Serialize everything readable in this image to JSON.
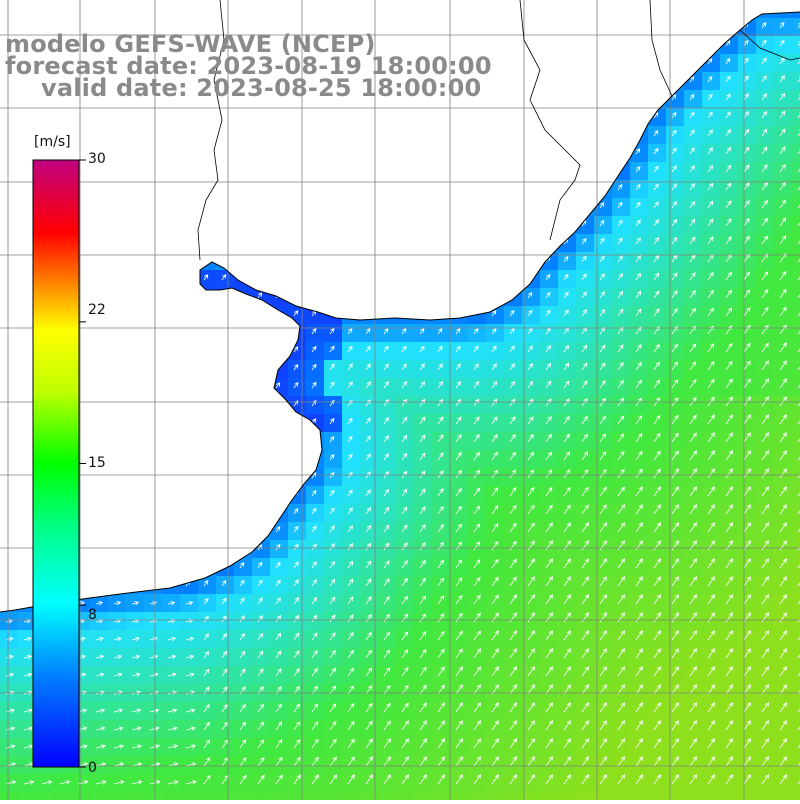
{
  "titles": {
    "line1": "modelo GEFS-WAVE (NCEP)",
    "line2": "forecast date: 2023-08-19 18:00:00",
    "line3": "valid date: 2023-08-25 18:00:00"
  },
  "colorbar": {
    "units": "[m/s]",
    "ticks": [
      "30",
      "22",
      "15",
      "8",
      "0"
    ],
    "tick_values": [
      30,
      22,
      15,
      8,
      0
    ],
    "min": 0,
    "max": 30
  },
  "map": {
    "field": "wind speed with direction arrows",
    "dominant_direction": "toward north-east",
    "sea_colors": {
      "coastal": "#1040ff",
      "shelf": "#20e0ff",
      "open_sea": "#40e840",
      "max": "#8ee01c"
    },
    "land_color": "#ffffff",
    "coastline_color": "#000000",
    "grid_color": "#808080",
    "arrow_color": "#ffffff"
  }
}
